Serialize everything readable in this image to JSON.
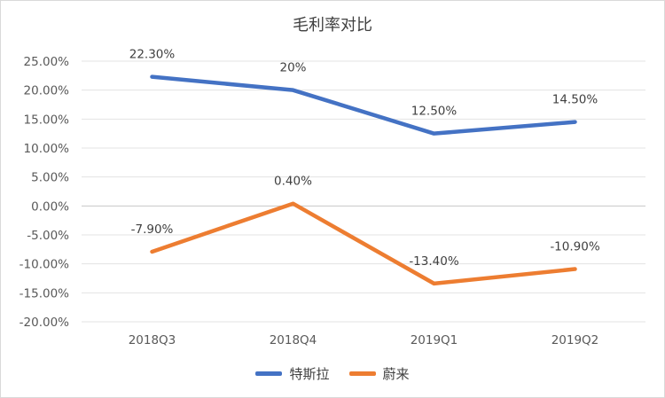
{
  "chart_data": {
    "type": "line",
    "title": "毛利率对比",
    "categories": [
      "2018Q3",
      "2018Q4",
      "2019Q1",
      "2019Q2"
    ],
    "y_ticks": [
      "25.00%",
      "20.00%",
      "15.00%",
      "10.00%",
      "5.00%",
      "0.00%",
      "-5.00%",
      "-10.00%",
      "-15.00%",
      "-20.00%"
    ],
    "ylim": [
      -20,
      25
    ],
    "y_unit": "%",
    "grid": true,
    "legend_position": "bottom",
    "series": [
      {
        "name": "特斯拉",
        "color": "#4472c4",
        "values": [
          22.3,
          20,
          12.5,
          14.5
        ],
        "labels": [
          "22.30%",
          "20%",
          "12.50%",
          "14.50%"
        ]
      },
      {
        "name": "蔚来",
        "color": "#ed7d31",
        "values": [
          -7.9,
          0.4,
          -13.4,
          -10.9
        ],
        "labels": [
          "-7.90%",
          "0.40%",
          "-13.40%",
          "-10.90%"
        ]
      }
    ]
  }
}
